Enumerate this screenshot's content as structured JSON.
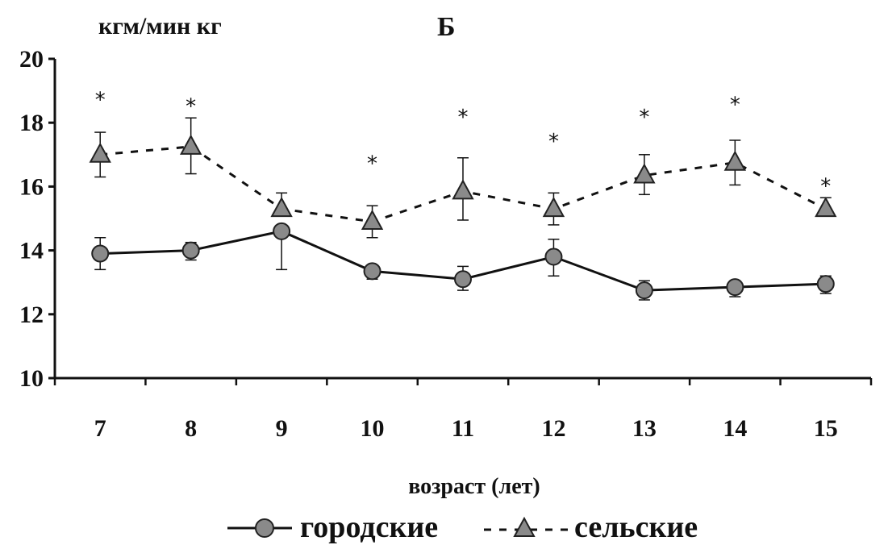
{
  "chart_data": {
    "type": "line",
    "title": "Б",
    "ylabel": "кгм/мин кг",
    "xlabel": "возраст (лет)",
    "categories": [
      "7",
      "8",
      "9",
      "10",
      "11",
      "12",
      "13",
      "14",
      "15"
    ],
    "ylim": [
      10,
      20
    ],
    "yticks": [
      10,
      12,
      14,
      16,
      18,
      20
    ],
    "series": [
      {
        "name": "городские",
        "marker": "circle",
        "line": "solid",
        "values": [
          13.9,
          14.0,
          14.6,
          13.35,
          13.1,
          13.8,
          12.75,
          12.85,
          12.95
        ],
        "err_upper": [
          0.5,
          0.25,
          0.0,
          0.1,
          0.4,
          0.55,
          0.3,
          0.2,
          0.25
        ],
        "err_lower": [
          0.5,
          0.3,
          1.2,
          0.25,
          0.35,
          0.6,
          0.3,
          0.3,
          0.3
        ]
      },
      {
        "name": "сельские",
        "marker": "triangle",
        "line": "dashed",
        "values": [
          17.0,
          17.25,
          15.3,
          14.9,
          15.85,
          15.3,
          16.35,
          16.75,
          15.3
        ],
        "err_upper": [
          0.7,
          0.9,
          0.5,
          0.5,
          1.05,
          0.5,
          0.65,
          0.7,
          0.35
        ],
        "err_lower": [
          0.7,
          0.85,
          0.0,
          0.5,
          0.9,
          0.5,
          0.6,
          0.7,
          0.0
        ]
      }
    ],
    "annotations": [
      "*",
      "*",
      "*",
      "*",
      "*",
      "*",
      "*",
      "*"
    ],
    "annotation_positions": [
      "7",
      "8",
      "10",
      "11",
      "12",
      "13",
      "14",
      "15"
    ],
    "annotation_y": [
      18.5,
      18.3,
      16.5,
      17.95,
      17.2,
      17.95,
      18.35,
      15.8
    ],
    "legend": {
      "position": "bottom"
    },
    "grid": false,
    "colors": {
      "axis": "#111111",
      "marker": "#8a8a8a",
      "line": "#111111"
    }
  }
}
